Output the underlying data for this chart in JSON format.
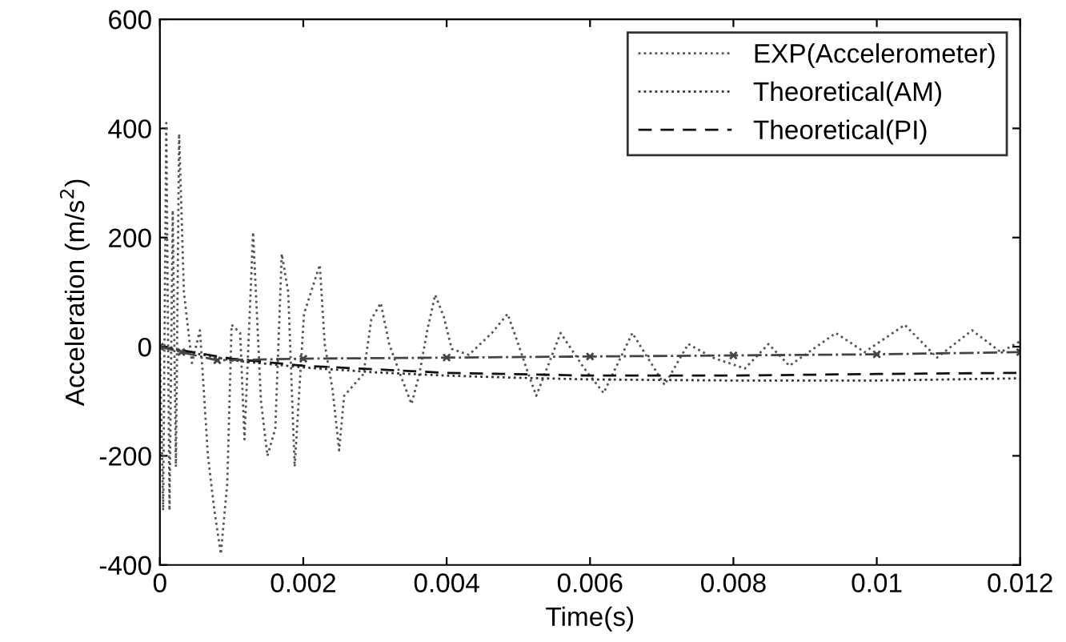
{
  "chart_data": {
    "type": "line",
    "xlabel": "Time(s)",
    "ylabel": "Acceleration (m/s$^{2}$)",
    "xlim": [
      0,
      0.012
    ],
    "ylim": [
      -400,
      600
    ],
    "xticks": [
      0,
      0.002,
      0.004,
      0.006,
      0.008,
      0.01,
      0.012
    ],
    "yticks": [
      -400,
      -200,
      0,
      200,
      400,
      600
    ],
    "grid": false,
    "legend": "top right",
    "series": [
      {
        "name": "EXP(Accelerometer)",
        "color": "#555555",
        "line_style": "dotted",
        "marker": "none",
        "x": [
          0,
          4.5e-05,
          8.9e-05,
          0.000134,
          0.000179,
          0.000223,
          0.000268,
          0.000335,
          0.000447,
          0.000559,
          0.00067,
          0.00076,
          0.00085,
          0.00094,
          0.001,
          0.00112,
          0.00118,
          0.0013,
          0.00141,
          0.0015,
          0.00161,
          0.0017,
          0.00179,
          0.00188,
          0.00201,
          0.00223,
          0.0023,
          0.00241,
          0.0025,
          0.00257,
          0.00284,
          0.00295,
          0.00308,
          0.0032,
          0.00335,
          0.00351,
          0.00362,
          0.00373,
          0.00384,
          0.00396,
          0.00407,
          0.00431,
          0.00463,
          0.00485,
          0.00498,
          0.00514,
          0.00525,
          0.00559,
          0.00592,
          0.00619,
          0.00659,
          0.00704,
          0.00737,
          0.00771,
          0.00816,
          0.00849,
          0.00878,
          0.00916,
          0.00943,
          0.00983,
          0.01039,
          0.01084,
          0.01133,
          0.01173,
          0.012
        ],
        "values": [
          0,
          -300,
          410,
          -300,
          250,
          -220,
          390,
          100,
          -30,
          30,
          -200,
          -300,
          -380,
          -250,
          40,
          25,
          -170,
          210,
          -100,
          -200,
          -150,
          170,
          100,
          -220,
          60,
          150,
          4,
          -80,
          -190,
          -90,
          -50,
          50,
          80,
          4,
          -50,
          -105,
          -50,
          30,
          95,
          55,
          -4,
          -15,
          25,
          60,
          12,
          -50,
          -90,
          25,
          -40,
          -85,
          25,
          -70,
          5,
          -20,
          -40,
          5,
          -35,
          0,
          25,
          -10,
          40,
          -20,
          30,
          -10,
          10
        ]
      },
      {
        "name": "Theoretical(AM)",
        "color": "#333333",
        "line_style": "dotted",
        "marker": "none",
        "x": [
          0,
          0.001,
          0.002,
          0.003,
          0.004,
          0.005,
          0.006,
          0.008,
          0.01,
          0.012
        ],
        "values": [
          0,
          -25,
          -38,
          -47,
          -53,
          -57,
          -60,
          -62,
          -62,
          -58
        ]
      },
      {
        "name": "Theoretical(PI)",
        "color": "#111111",
        "line_style": "dashed",
        "marker": "none",
        "x": [
          0,
          0.001,
          0.002,
          0.004,
          0.006,
          0.008,
          0.01,
          0.012
        ],
        "values": [
          0,
          -22,
          -35,
          -48,
          -53,
          -53,
          -50,
          -48
        ]
      },
      {
        "color": "#444444",
        "line_style": "dashdot",
        "marker": "cross",
        "x": [
          0,
          0.0003,
          0.0008,
          0.002,
          0.004,
          0.006,
          0.008,
          0.01,
          0.012
        ],
        "values": [
          0,
          -10,
          -25,
          -22,
          -20,
          -18,
          -16,
          -14,
          -10
        ]
      }
    ]
  }
}
